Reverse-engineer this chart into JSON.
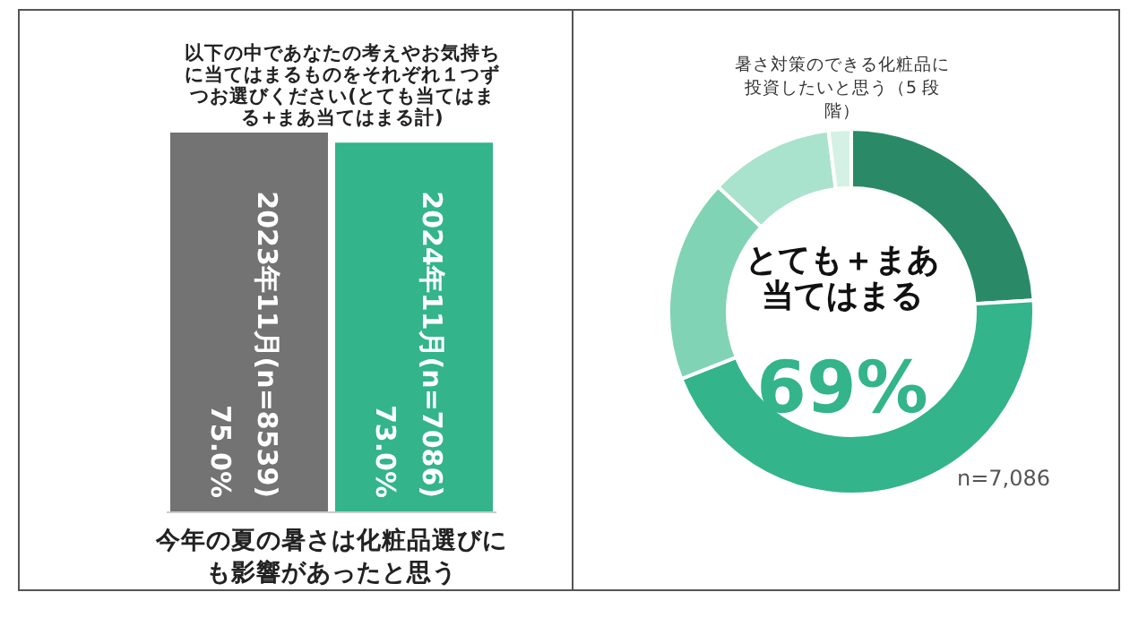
{
  "chart_data": [
    {
      "type": "bar",
      "title": "以下の中であなたの考えやお気持ちに当てはまるものをそれぞれ１つずつお選びください(とても当てはまる+まあ当てはまる計)",
      "xlabel": "今年の夏の暑さは化粧品選びにも影響があったと思う",
      "categories": [
        "2023年11月(n=8539)",
        "2024年11月(n=7086)"
      ],
      "values": [
        75.0,
        73.0
      ],
      "colors": [
        "#737373",
        "#33b48a"
      ],
      "value_labels": [
        "75.0%",
        "73.0%"
      ]
    },
    {
      "type": "donut",
      "title": "暑さ対策のできる化粧品に投資したいと思う（5 段階）",
      "categories": [
        null,
        null,
        null,
        null,
        null
      ],
      "values": [
        24,
        45,
        18,
        11,
        2
      ],
      "colors": [
        "#2a8a68",
        "#33b48a",
        "#80d3b4",
        "#a9e2cd",
        "#d5f1e6"
      ],
      "annotations": [
        "とても＋まあ当てはまる",
        "69%",
        "n=7,086"
      ]
    }
  ]
}
